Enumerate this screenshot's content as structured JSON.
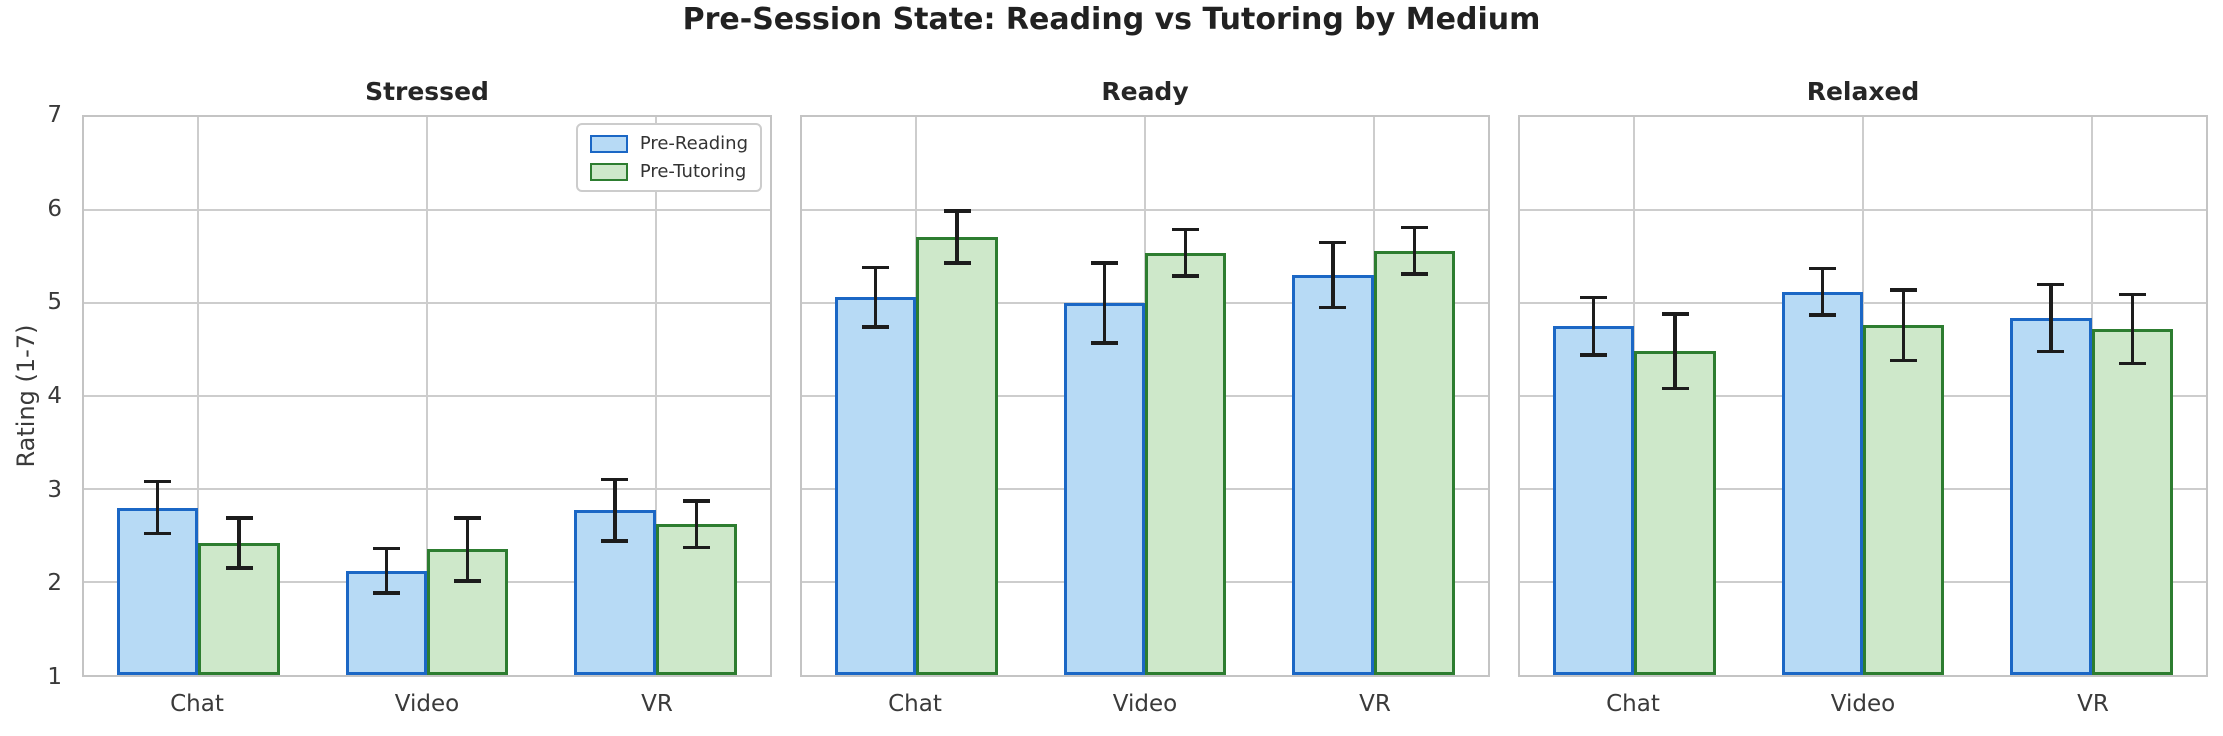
{
  "figure": {
    "title": "Pre-Session State: Reading vs Tutoring by Medium",
    "ylabel": "Rating (1-7)"
  },
  "legend": {
    "items": [
      {
        "label": "Pre-Reading",
        "fill": "#b7daf5",
        "edge": "#1b67c5"
      },
      {
        "label": "Pre-Tutoring",
        "fill": "#cee8ca",
        "edge": "#2d7d30"
      }
    ],
    "position": "upper-right-first-subplot"
  },
  "colors": {
    "grid": "#cdcdcd",
    "spine": "#c4c4c4",
    "error_bar": "#1c1c1c",
    "title_text": "#212121",
    "tick_text": "#3a3a3a",
    "background": "#ffffff"
  },
  "chart_data": [
    {
      "type": "bar",
      "title": "Stressed",
      "categories": [
        "Chat",
        "Video",
        "VR"
      ],
      "series": [
        {
          "name": "Pre-Reading",
          "values": [
            2.8,
            2.12,
            2.77
          ],
          "errors": [
            0.28,
            0.24,
            0.33
          ],
          "fill": "#b7daf5",
          "edge": "#1b67c5"
        },
        {
          "name": "Pre-Tutoring",
          "values": [
            2.42,
            2.35,
            2.62
          ],
          "errors": [
            0.27,
            0.34,
            0.25
          ],
          "fill": "#cee8ca",
          "edge": "#2d7d30"
        }
      ],
      "ylim": [
        1,
        7
      ],
      "yticks": [
        1,
        2,
        3,
        4,
        5,
        6,
        7
      ],
      "grid": true,
      "legend_visible": true
    },
    {
      "type": "bar",
      "title": "Ready",
      "categories": [
        "Chat",
        "Video",
        "VR"
      ],
      "series": [
        {
          "name": "Pre-Reading",
          "values": [
            5.06,
            5.0,
            5.3
          ],
          "errors": [
            0.32,
            0.43,
            0.35
          ],
          "fill": "#b7daf5",
          "edge": "#1b67c5"
        },
        {
          "name": "Pre-Tutoring",
          "values": [
            5.71,
            5.54,
            5.56
          ],
          "errors": [
            0.28,
            0.25,
            0.25
          ],
          "fill": "#cee8ca",
          "edge": "#2d7d30"
        }
      ],
      "ylim": [
        1,
        7
      ],
      "yticks": [
        1,
        2,
        3,
        4,
        5,
        6,
        7
      ],
      "grid": true,
      "legend_visible": false
    },
    {
      "type": "bar",
      "title": "Relaxed",
      "categories": [
        "Chat",
        "Video",
        "VR"
      ],
      "series": [
        {
          "name": "Pre-Reading",
          "values": [
            4.75,
            5.12,
            4.84
          ],
          "errors": [
            0.31,
            0.25,
            0.36
          ],
          "fill": "#b7daf5",
          "edge": "#1b67c5"
        },
        {
          "name": "Pre-Tutoring",
          "values": [
            4.48,
            4.76,
            4.72
          ],
          "errors": [
            0.4,
            0.38,
            0.37
          ],
          "fill": "#cee8ca",
          "edge": "#2d7d30"
        }
      ],
      "ylim": [
        1,
        7
      ],
      "yticks": [
        1,
        2,
        3,
        4,
        5,
        6,
        7
      ],
      "grid": true,
      "legend_visible": false
    }
  ]
}
